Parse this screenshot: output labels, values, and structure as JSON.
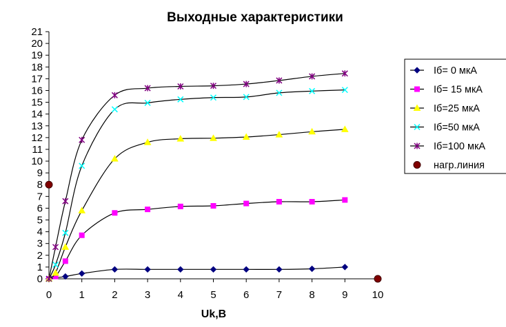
{
  "chart_data": {
    "type": "line",
    "title": "Выходные характеристики",
    "xlabel": "Uk,B",
    "ylabel": "",
    "xlim": [
      0,
      10
    ],
    "ylim": [
      0,
      21
    ],
    "x_ticks": [
      0,
      1,
      2,
      3,
      4,
      5,
      6,
      7,
      8,
      9,
      10
    ],
    "y_ticks": [
      0,
      1,
      2,
      3,
      4,
      5,
      6,
      7,
      8,
      9,
      10,
      11,
      12,
      13,
      14,
      15,
      16,
      17,
      18,
      19,
      20,
      21
    ],
    "grid": false,
    "legend_position": "right",
    "series": [
      {
        "name": "Iб= 0 мкА",
        "color": "#000080",
        "marker": "diamond",
        "smooth_line": true,
        "points": [
          [
            0,
            0
          ],
          [
            0.5,
            0.2
          ],
          [
            1,
            0.45
          ],
          [
            2,
            0.8
          ],
          [
            3,
            0.8
          ],
          [
            4,
            0.8
          ],
          [
            5,
            0.8
          ],
          [
            6,
            0.8
          ],
          [
            7,
            0.8
          ],
          [
            8,
            0.85
          ],
          [
            9,
            1.0
          ]
        ]
      },
      {
        "name": "Iб= 15 мкА",
        "color": "#ff00ff",
        "marker": "square",
        "smooth_line": true,
        "points": [
          [
            0,
            0
          ],
          [
            0.2,
            0.2
          ],
          [
            0.5,
            1.5
          ],
          [
            1,
            3.7
          ],
          [
            2,
            5.6
          ],
          [
            3,
            5.9
          ],
          [
            4,
            6.15
          ],
          [
            5,
            6.2
          ],
          [
            6,
            6.4
          ],
          [
            7,
            6.55
          ],
          [
            8,
            6.55
          ],
          [
            9,
            6.7
          ]
        ]
      },
      {
        "name": "Iб=25 мкА",
        "color": "#ffff00",
        "marker": "triangle",
        "smooth_line": true,
        "points": [
          [
            0,
            0
          ],
          [
            0.2,
            0.5
          ],
          [
            0.5,
            2.7
          ],
          [
            1,
            5.8
          ],
          [
            2,
            10.2
          ],
          [
            3,
            11.6
          ],
          [
            4,
            11.9
          ],
          [
            5,
            11.95
          ],
          [
            6,
            12.05
          ],
          [
            7,
            12.25
          ],
          [
            8,
            12.5
          ],
          [
            9,
            12.7
          ]
        ]
      },
      {
        "name": "Iб=50 мкА",
        "color": "#00ffff",
        "marker": "x",
        "smooth_line": true,
        "points": [
          [
            0,
            0
          ],
          [
            0.2,
            1.2
          ],
          [
            0.5,
            3.9
          ],
          [
            1,
            9.6
          ],
          [
            2,
            14.4
          ],
          [
            3,
            14.95
          ],
          [
            4,
            15.25
          ],
          [
            5,
            15.4
          ],
          [
            6,
            15.45
          ],
          [
            7,
            15.8
          ],
          [
            8,
            15.95
          ],
          [
            9,
            16.05
          ]
        ]
      },
      {
        "name": "Iб=100 мкА",
        "color": "#800080",
        "marker": "asterisk",
        "smooth_line": true,
        "points": [
          [
            0,
            0
          ],
          [
            0.2,
            2.7
          ],
          [
            0.5,
            6.6
          ],
          [
            1,
            11.8
          ],
          [
            2,
            15.6
          ],
          [
            3,
            16.2
          ],
          [
            4,
            16.35
          ],
          [
            5,
            16.4
          ],
          [
            6,
            16.55
          ],
          [
            7,
            16.85
          ],
          [
            8,
            17.2
          ],
          [
            9,
            17.45
          ]
        ]
      },
      {
        "name": "нагр.линия",
        "color": "#800000",
        "marker": "circle",
        "smooth_line": false,
        "points": [
          [
            0,
            8
          ],
          [
            10,
            0
          ]
        ]
      }
    ]
  }
}
